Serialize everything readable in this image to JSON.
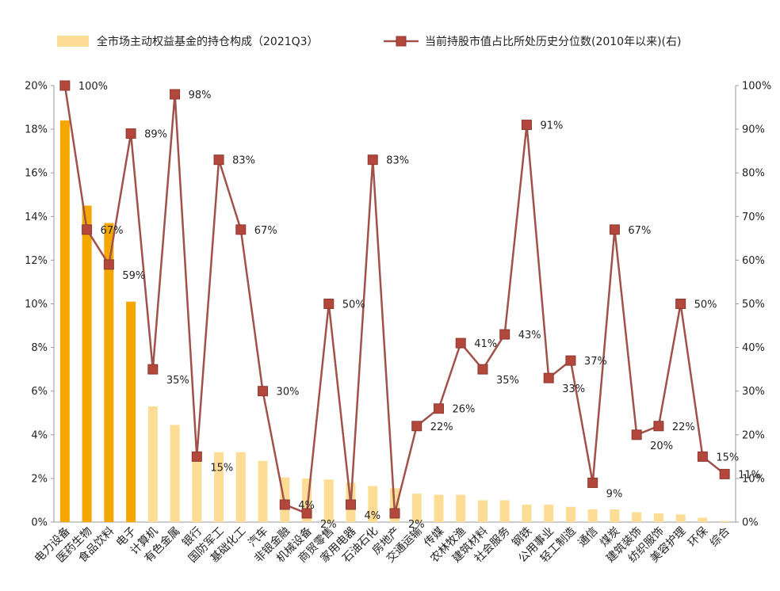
{
  "chart_data": {
    "type": "bar+line",
    "legend": {
      "placement": "top",
      "bar_label": "全市场主动权益基金的持仓构成（2021Q3）",
      "line_label": "当前持股市值占比所处历史分位数(2010年以来)(右)"
    },
    "categories": [
      "电力设备",
      "医药生物",
      "食品饮料",
      "电子",
      "计算机",
      "有色金属",
      "银行",
      "国防军工",
      "基础化工",
      "汽车",
      "非银金融",
      "机械设备",
      "商贸零售",
      "家用电器",
      "石油石化",
      "房地产",
      "交通运输",
      "传媒",
      "农林牧渔",
      "建筑材料",
      "社会服务",
      "钢铁",
      "公用事业",
      "轻工制造",
      "通信",
      "煤炭",
      "建筑装饰",
      "纺织服饰",
      "美容护理",
      "环保",
      "综合"
    ],
    "bar_values": [
      18.4,
      14.5,
      13.7,
      10.1,
      5.3,
      4.45,
      3.1,
      3.2,
      3.2,
      2.8,
      2.05,
      2.0,
      1.95,
      1.8,
      1.65,
      1.55,
      1.3,
      1.25,
      1.25,
      1.0,
      1.0,
      0.8,
      0.8,
      0.7,
      0.58,
      0.58,
      0.45,
      0.4,
      0.35,
      0.2,
      0.05
    ],
    "highlight_count": 4,
    "line_values": [
      100,
      67,
      59,
      89,
      35,
      98,
      15,
      83,
      67,
      30,
      4,
      2,
      50,
      4,
      83,
      2,
      22,
      26,
      41,
      35,
      43,
      91,
      33,
      37,
      9,
      67,
      20,
      22,
      50,
      15,
      11
    ],
    "point_labels": [
      "100%",
      "67%",
      "59%",
      "89%",
      "35%",
      "98%",
      "15%",
      "83%",
      "67%",
      "30%",
      "4%",
      "2%",
      "50%",
      "4%",
      "83%",
      "2%",
      "22%",
      "26%",
      "41%",
      "35%",
      "43%",
      "91%",
      "33%",
      "37%",
      "9%",
      "67%",
      "20%",
      "22%",
      "50%",
      "15%",
      "11%"
    ],
    "y_left": {
      "min": 0,
      "max": 20,
      "step": 2,
      "ticks": [
        "0%",
        "2%",
        "4%",
        "6%",
        "8%",
        "10%",
        "12%",
        "14%",
        "16%",
        "18%",
        "20%"
      ]
    },
    "y_right": {
      "min": 0,
      "max": 100,
      "step": 10,
      "ticks": [
        "0%",
        "10%",
        "20%",
        "30%",
        "40%",
        "50%",
        "60%",
        "70%",
        "80%",
        "90%",
        "100%"
      ]
    },
    "grid": false,
    "colors": {
      "bar_highlight": "#F4A700",
      "bar_normal": "#FDDC96",
      "line": "#A0524A",
      "marker": "#B3473C",
      "text": "#222222"
    }
  }
}
